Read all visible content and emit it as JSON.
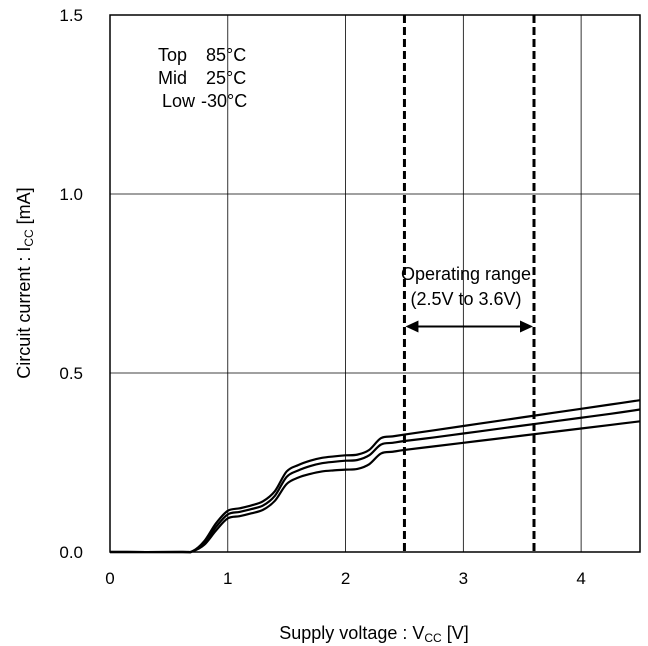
{
  "chart_data": {
    "type": "line",
    "xlabel": {
      "main": "Supply voltage : V",
      "sub": "CC",
      "unit": " [V]"
    },
    "ylabel": {
      "main": "Circuit current : I",
      "sub": "CC",
      "unit": " [mA]"
    },
    "xlim": [
      0,
      4.5
    ],
    "ylim": [
      0,
      1.5
    ],
    "x_ticks": [
      {
        "value": 0,
        "label": "0"
      },
      {
        "value": 1,
        "label": "1"
      },
      {
        "value": 2,
        "label": "2"
      },
      {
        "value": 3,
        "label": "3"
      },
      {
        "value": 4,
        "label": "4"
      }
    ],
    "y_ticks": [
      {
        "value": 0,
        "label": "0.0"
      },
      {
        "value": 0.5,
        "label": "0.5"
      },
      {
        "value": 1.0,
        "label": "1.0"
      },
      {
        "value": 1.5,
        "label": "1.5"
      }
    ],
    "grid": true,
    "legend": {
      "position": "top-left",
      "rows": [
        {
          "name": "Top",
          "value": "85°C"
        },
        {
          "name": "Mid",
          "value": "25°C"
        },
        {
          "name": "Low",
          "value": "-30°C"
        }
      ]
    },
    "series": [
      {
        "name": "Top",
        "x": [
          0,
          0.6,
          0.7,
          0.8,
          0.9,
          1.0,
          1.1,
          1.2,
          1.3,
          1.4,
          1.5,
          1.6,
          1.7,
          1.8,
          1.9,
          2.0,
          2.1,
          2.2,
          2.3,
          2.4,
          2.5,
          2.75,
          3.0,
          3.25,
          3.5,
          3.75,
          4.0,
          4.25,
          4.5
        ],
        "y": [
          0,
          0,
          0.002,
          0.03,
          0.08,
          0.115,
          0.122,
          0.13,
          0.142,
          0.17,
          0.225,
          0.243,
          0.255,
          0.263,
          0.267,
          0.27,
          0.272,
          0.285,
          0.318,
          0.323,
          0.328,
          0.34,
          0.352,
          0.364,
          0.376,
          0.388,
          0.4,
          0.412,
          0.424
        ]
      },
      {
        "name": "Mid",
        "x": [
          0,
          0.6,
          0.7,
          0.8,
          0.9,
          1.0,
          1.1,
          1.2,
          1.3,
          1.4,
          1.5,
          1.6,
          1.7,
          1.8,
          1.9,
          2.0,
          2.1,
          2.2,
          2.3,
          2.4,
          2.5,
          2.75,
          3.0,
          3.25,
          3.5,
          3.75,
          4.0,
          4.25,
          4.5
        ],
        "y": [
          0,
          0,
          0.002,
          0.025,
          0.07,
          0.105,
          0.112,
          0.12,
          0.13,
          0.157,
          0.21,
          0.228,
          0.24,
          0.248,
          0.252,
          0.255,
          0.257,
          0.27,
          0.3,
          0.305,
          0.31,
          0.32,
          0.331,
          0.342,
          0.353,
          0.364,
          0.375,
          0.386,
          0.398
        ]
      },
      {
        "name": "Low",
        "x": [
          0,
          0.6,
          0.7,
          0.8,
          0.9,
          1.0,
          1.1,
          1.2,
          1.3,
          1.4,
          1.5,
          1.6,
          1.7,
          1.8,
          1.9,
          2.0,
          2.1,
          2.2,
          2.3,
          2.4,
          2.5,
          2.75,
          3.0,
          3.25,
          3.5,
          3.75,
          4.0,
          4.25,
          4.5
        ],
        "y": [
          0,
          0,
          0.002,
          0.02,
          0.06,
          0.094,
          0.1,
          0.108,
          0.118,
          0.143,
          0.19,
          0.208,
          0.218,
          0.225,
          0.228,
          0.23,
          0.232,
          0.245,
          0.275,
          0.28,
          0.285,
          0.295,
          0.305,
          0.315,
          0.325,
          0.335,
          0.345,
          0.355,
          0.365
        ]
      }
    ],
    "operating_range": {
      "label_line1": "Operating range",
      "label_line2": "(2.5V to 3.6V)",
      "x_start": 2.5,
      "x_end": 3.6,
      "arrow_y": 0.63
    }
  }
}
